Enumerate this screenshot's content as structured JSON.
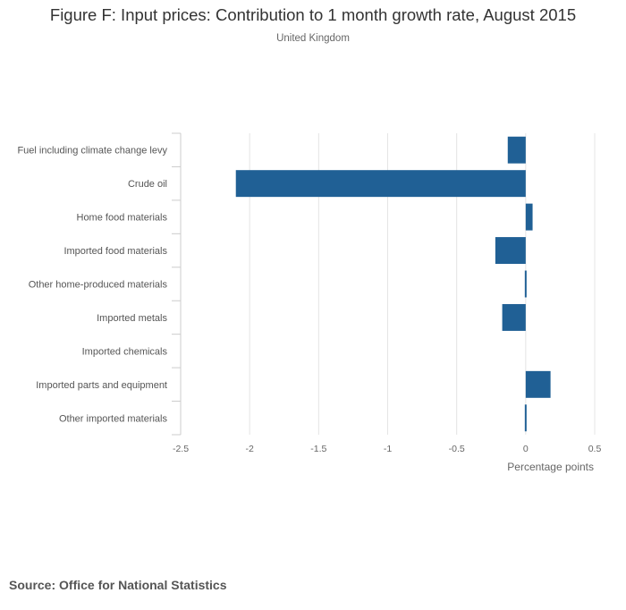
{
  "title": "Figure F: Input prices: Contribution to 1 month growth rate, August 2015",
  "subtitle": "United Kingdom",
  "source": "Source: Office for National Statistics",
  "chart_data": {
    "type": "bar",
    "orientation": "horizontal",
    "categories": [
      "Fuel including climate change levy",
      "Crude oil",
      "Home food materials",
      "Imported food materials",
      "Other home-produced materials",
      "Imported metals",
      "Imported chemicals",
      "Imported parts and equipment",
      "Other imported materials"
    ],
    "values": [
      -0.13,
      -2.1,
      0.05,
      -0.22,
      -0.01,
      -0.17,
      0.0,
      0.18,
      -0.01
    ],
    "xlabel": "Percentage points",
    "xlim": [
      -2.5,
      0.5
    ],
    "xticks": [
      -2.5,
      -2,
      -1.5,
      -1,
      -0.5,
      0,
      0.5
    ],
    "xtick_labels": [
      "-2.5",
      "-2",
      "-1.5",
      "-1",
      "-0.5",
      "0",
      "0.5"
    ],
    "bar_color": "#206095",
    "grid": true,
    "legend": "none"
  }
}
